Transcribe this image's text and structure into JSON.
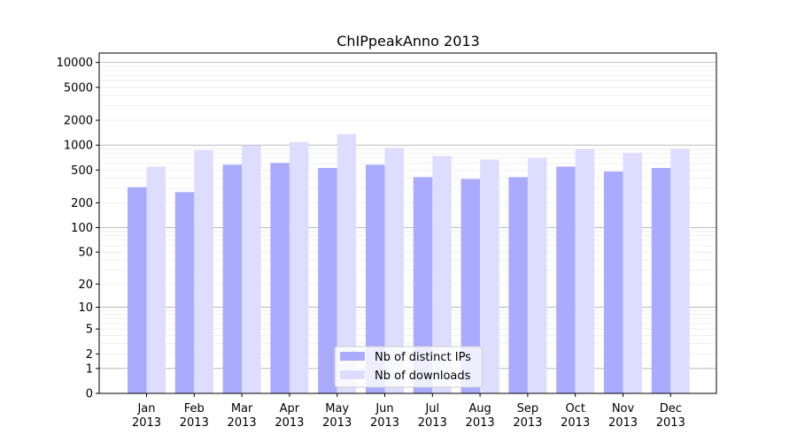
{
  "chart_data": {
    "type": "bar",
    "title": "ChIPpeakAnno 2013",
    "xlabel": "",
    "ylabel": "",
    "yscale": "log",
    "ylim": [
      0,
      13000
    ],
    "yticks": [
      0,
      1,
      2,
      5,
      10,
      20,
      50,
      100,
      200,
      500,
      1000,
      2000,
      5000,
      10000
    ],
    "categories": [
      "Jan\n2013",
      "Feb\n2013",
      "Mar\n2013",
      "Apr\n2013",
      "May\n2013",
      "Jun\n2013",
      "Jul\n2013",
      "Aug\n2013",
      "Sep\n2013",
      "Oct\n2013",
      "Nov\n2013",
      "Dec\n2013"
    ],
    "series": [
      {
        "name": "Nb of distinct IPs",
        "color": "#aaaaff",
        "values": [
          310,
          270,
          580,
          610,
          530,
          580,
          410,
          390,
          410,
          550,
          480,
          530
        ]
      },
      {
        "name": "Nb of downloads",
        "color": "#ddddff",
        "values": [
          550,
          870,
          990,
          1090,
          1360,
          930,
          740,
          670,
          700,
          890,
          810,
          910
        ]
      }
    ],
    "grid": true,
    "legend_position": "bottom-center"
  }
}
